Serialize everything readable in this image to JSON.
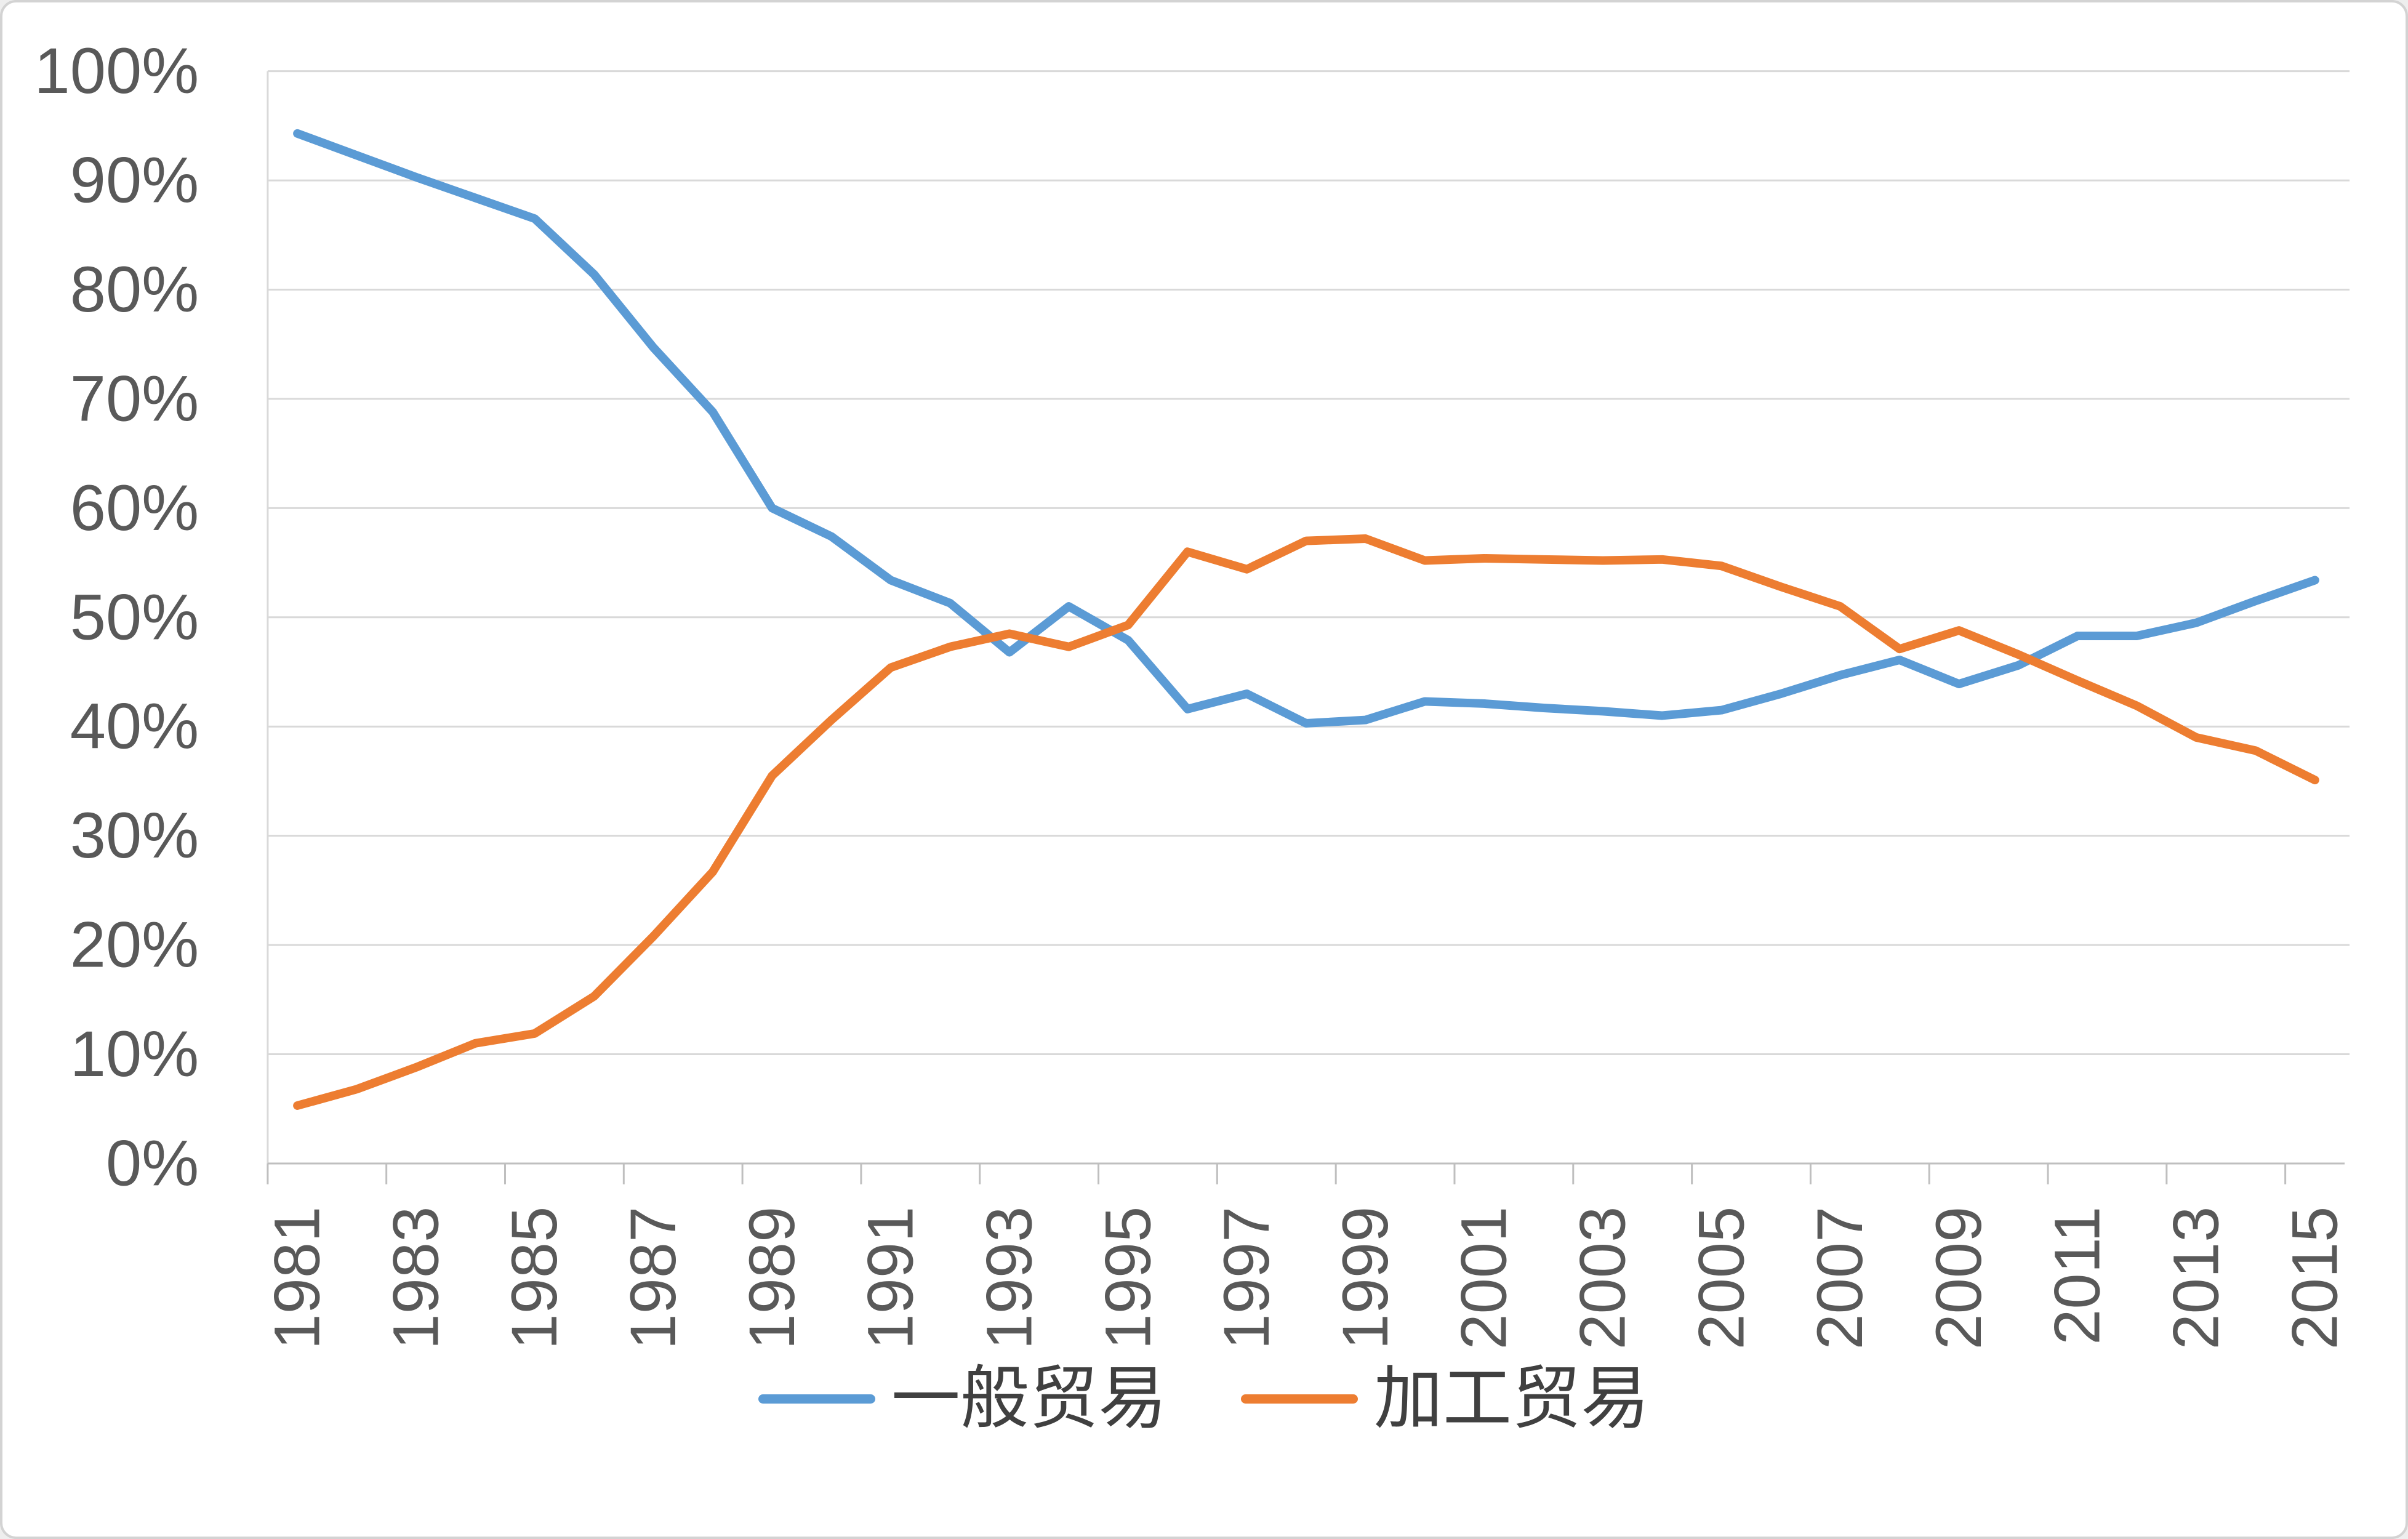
{
  "chart_data": {
    "type": "line",
    "x": [
      1981,
      1982,
      1983,
      1984,
      1985,
      1986,
      1987,
      1988,
      1989,
      1990,
      1991,
      1992,
      1993,
      1994,
      1995,
      1996,
      1997,
      1998,
      1999,
      2000,
      2001,
      2002,
      2003,
      2004,
      2005,
      2006,
      2007,
      2008,
      2009,
      2010,
      2011,
      2012,
      2013,
      2014,
      2015
    ],
    "series": [
      {
        "name": "一般贸易",
        "color": "#5B9BD5",
        "values": [
          94.3,
          92.3,
          90.3,
          88.4,
          86.5,
          81.4,
          74.7,
          68.8,
          60.0,
          57.4,
          53.4,
          51.3,
          46.8,
          51.0,
          47.9,
          41.6,
          43.0,
          40.3,
          40.6,
          42.3,
          42.1,
          41.7,
          41.4,
          41.0,
          41.5,
          43.0,
          44.7,
          46.1,
          43.9,
          45.6,
          48.3,
          48.3,
          49.5,
          51.5,
          53.4
        ]
      },
      {
        "name": "加工贸易",
        "color": "#ED7D31",
        "values": [
          5.3,
          6.8,
          8.8,
          11.0,
          11.9,
          15.3,
          20.8,
          26.7,
          35.5,
          40.6,
          45.4,
          47.3,
          48.5,
          47.3,
          49.3,
          56.0,
          54.4,
          57.0,
          57.2,
          55.2,
          55.4,
          55.3,
          55.2,
          55.3,
          54.7,
          52.8,
          51.0,
          47.1,
          48.8,
          46.6,
          44.2,
          41.9,
          39.0,
          37.8,
          35.1
        ]
      }
    ],
    "title": "",
    "xlabel": "",
    "ylabel": "",
    "ylim": [
      0,
      100
    ],
    "ytick_step": 10,
    "ytick_labels": [
      "0%",
      "10%",
      "20%",
      "30%",
      "40%",
      "50%",
      "60%",
      "70%",
      "80%",
      "90%",
      "100%"
    ],
    "xtick_labels": [
      "1981",
      "1983",
      "1985",
      "1987",
      "1989",
      "1991",
      "1993",
      "1995",
      "1997",
      "1999",
      "2001",
      "2003",
      "2005",
      "2007",
      "2009",
      "2011",
      "2013",
      "2015"
    ],
    "grid": "horizontal",
    "legend_position": "bottom"
  },
  "style": {
    "gridline_color": "#D9D9D9",
    "axis_line_color": "#BFBFBF",
    "axis_label_color": "#595959",
    "legend_text_color": "#404040",
    "background": "#FFFFFF",
    "border_color": "#D3D3D3"
  }
}
